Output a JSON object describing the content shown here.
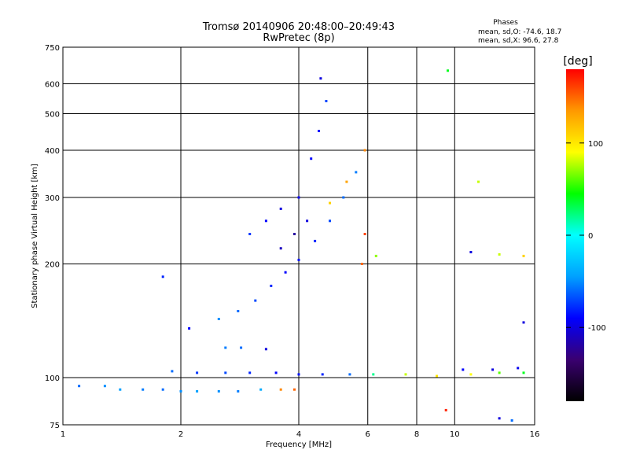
{
  "chart_data": {
    "type": "scatter",
    "title": "Tromsø 20140906 20:48:00–20:49:43",
    "subtitle": "RwPretec (8p)",
    "phases_header": "Phases",
    "stats": [
      "mean, sd,O: -74.6, 18.7",
      "mean, sd,X:  96.6, 27.8"
    ],
    "xlabel": "Frequency [MHz]",
    "ylabel": "Stationary phase Virtual Height [km]",
    "x_scale": "log",
    "y_scale": "log",
    "xlim": [
      1,
      16
    ],
    "ylim": [
      75,
      750
    ],
    "xticks": [
      1,
      2,
      4,
      6,
      8,
      10,
      16
    ],
    "xtick_labels": [
      "1",
      "2",
      "4",
      "6",
      "8",
      "10",
      "16"
    ],
    "yticks": [
      75,
      100,
      200,
      300,
      400,
      500,
      600,
      750
    ],
    "ytick_labels": [
      "75",
      "100",
      "200",
      "300",
      "400",
      "500",
      "600",
      "750"
    ],
    "grid": true,
    "colorbar": {
      "label": "[deg]",
      "range": [
        -180,
        180
      ],
      "ticks": [
        100,
        0,
        -100
      ],
      "tick_labels": [
        "100",
        "0",
        "-100"
      ],
      "colors": [
        "#000000",
        "#3a0070",
        "#0000ff",
        "#00a0ff",
        "#00ffff",
        "#00ff00",
        "#ffff00",
        "#ff9900",
        "#ff0000"
      ]
    },
    "series": [
      {
        "points": [
          {
            "x": 1.1,
            "y": 95,
            "phase": -60
          },
          {
            "x": 1.28,
            "y": 95,
            "phase": -50
          },
          {
            "x": 1.4,
            "y": 93,
            "phase": -45
          },
          {
            "x": 1.6,
            "y": 93,
            "phase": -55
          },
          {
            "x": 1.8,
            "y": 93,
            "phase": -60
          },
          {
            "x": 2.0,
            "y": 92,
            "phase": -50
          },
          {
            "x": 2.2,
            "y": 92,
            "phase": -45
          },
          {
            "x": 2.5,
            "y": 92,
            "phase": -50
          },
          {
            "x": 2.8,
            "y": 92,
            "phase": -55
          },
          {
            "x": 3.2,
            "y": 93,
            "phase": -40
          },
          {
            "x": 3.6,
            "y": 93,
            "phase": 140
          },
          {
            "x": 3.9,
            "y": 93,
            "phase": 150
          },
          {
            "x": 1.9,
            "y": 104,
            "phase": -60
          },
          {
            "x": 2.2,
            "y": 103,
            "phase": -75
          },
          {
            "x": 2.6,
            "y": 103,
            "phase": -70
          },
          {
            "x": 3.0,
            "y": 103,
            "phase": -80
          },
          {
            "x": 3.5,
            "y": 103,
            "phase": -90
          },
          {
            "x": 4.0,
            "y": 102,
            "phase": -85
          },
          {
            "x": 4.6,
            "y": 102,
            "phase": -80
          },
          {
            "x": 5.4,
            "y": 102,
            "phase": -60
          },
          {
            "x": 6.2,
            "y": 102,
            "phase": 20
          },
          {
            "x": 7.5,
            "y": 102,
            "phase": 80
          },
          {
            "x": 9.0,
            "y": 101,
            "phase": 100
          },
          {
            "x": 11.0,
            "y": 102,
            "phase": 90
          },
          {
            "x": 13.0,
            "y": 103,
            "phase": 60
          },
          {
            "x": 15.0,
            "y": 103,
            "phase": 40
          },
          {
            "x": 10.5,
            "y": 105,
            "phase": -90
          },
          {
            "x": 12.5,
            "y": 105,
            "phase": -100
          },
          {
            "x": 14.5,
            "y": 106,
            "phase": -95
          },
          {
            "x": 2.6,
            "y": 120,
            "phase": -55
          },
          {
            "x": 2.85,
            "y": 120,
            "phase": -60
          },
          {
            "x": 3.3,
            "y": 119,
            "phase": -100
          },
          {
            "x": 2.5,
            "y": 143,
            "phase": -50
          },
          {
            "x": 2.8,
            "y": 150,
            "phase": -60
          },
          {
            "x": 3.1,
            "y": 160,
            "phase": -70
          },
          {
            "x": 3.4,
            "y": 175,
            "phase": -80
          },
          {
            "x": 3.7,
            "y": 190,
            "phase": -90
          },
          {
            "x": 4.0,
            "y": 205,
            "phase": -85
          },
          {
            "x": 4.4,
            "y": 230,
            "phase": -80
          },
          {
            "x": 4.8,
            "y": 260,
            "phase": -70
          },
          {
            "x": 5.2,
            "y": 300,
            "phase": -60
          },
          {
            "x": 5.6,
            "y": 350,
            "phase": -55
          },
          {
            "x": 5.9,
            "y": 400,
            "phase": 140
          },
          {
            "x": 3.0,
            "y": 240,
            "phase": -75
          },
          {
            "x": 3.3,
            "y": 260,
            "phase": -90
          },
          {
            "x": 3.6,
            "y": 280,
            "phase": -100
          },
          {
            "x": 4.0,
            "y": 300,
            "phase": -95
          },
          {
            "x": 4.3,
            "y": 380,
            "phase": -90
          },
          {
            "x": 4.5,
            "y": 450,
            "phase": -85
          },
          {
            "x": 4.7,
            "y": 540,
            "phase": -70
          },
          {
            "x": 4.55,
            "y": 620,
            "phase": -100
          },
          {
            "x": 3.6,
            "y": 220,
            "phase": -110
          },
          {
            "x": 3.9,
            "y": 240,
            "phase": -120
          },
          {
            "x": 4.2,
            "y": 260,
            "phase": -100
          },
          {
            "x": 4.8,
            "y": 290,
            "phase": 110
          },
          {
            "x": 5.3,
            "y": 330,
            "phase": 130
          },
          {
            "x": 5.8,
            "y": 200,
            "phase": 150
          },
          {
            "x": 5.9,
            "y": 240,
            "phase": 160
          },
          {
            "x": 6.3,
            "y": 210,
            "phase": 70
          },
          {
            "x": 9.6,
            "y": 650,
            "phase": 40
          },
          {
            "x": 11.5,
            "y": 330,
            "phase": 80
          },
          {
            "x": 11.0,
            "y": 215,
            "phase": -100
          },
          {
            "x": 13.0,
            "y": 212,
            "phase": 80
          },
          {
            "x": 15.0,
            "y": 210,
            "phase": 110
          },
          {
            "x": 1.8,
            "y": 185,
            "phase": -80
          },
          {
            "x": 2.1,
            "y": 135,
            "phase": -90
          },
          {
            "x": 15.0,
            "y": 140,
            "phase": -100
          },
          {
            "x": 13.0,
            "y": 78,
            "phase": -100
          },
          {
            "x": 14.0,
            "y": 77,
            "phase": -60
          },
          {
            "x": 9.5,
            "y": 82,
            "phase": 170
          }
        ]
      }
    ]
  }
}
